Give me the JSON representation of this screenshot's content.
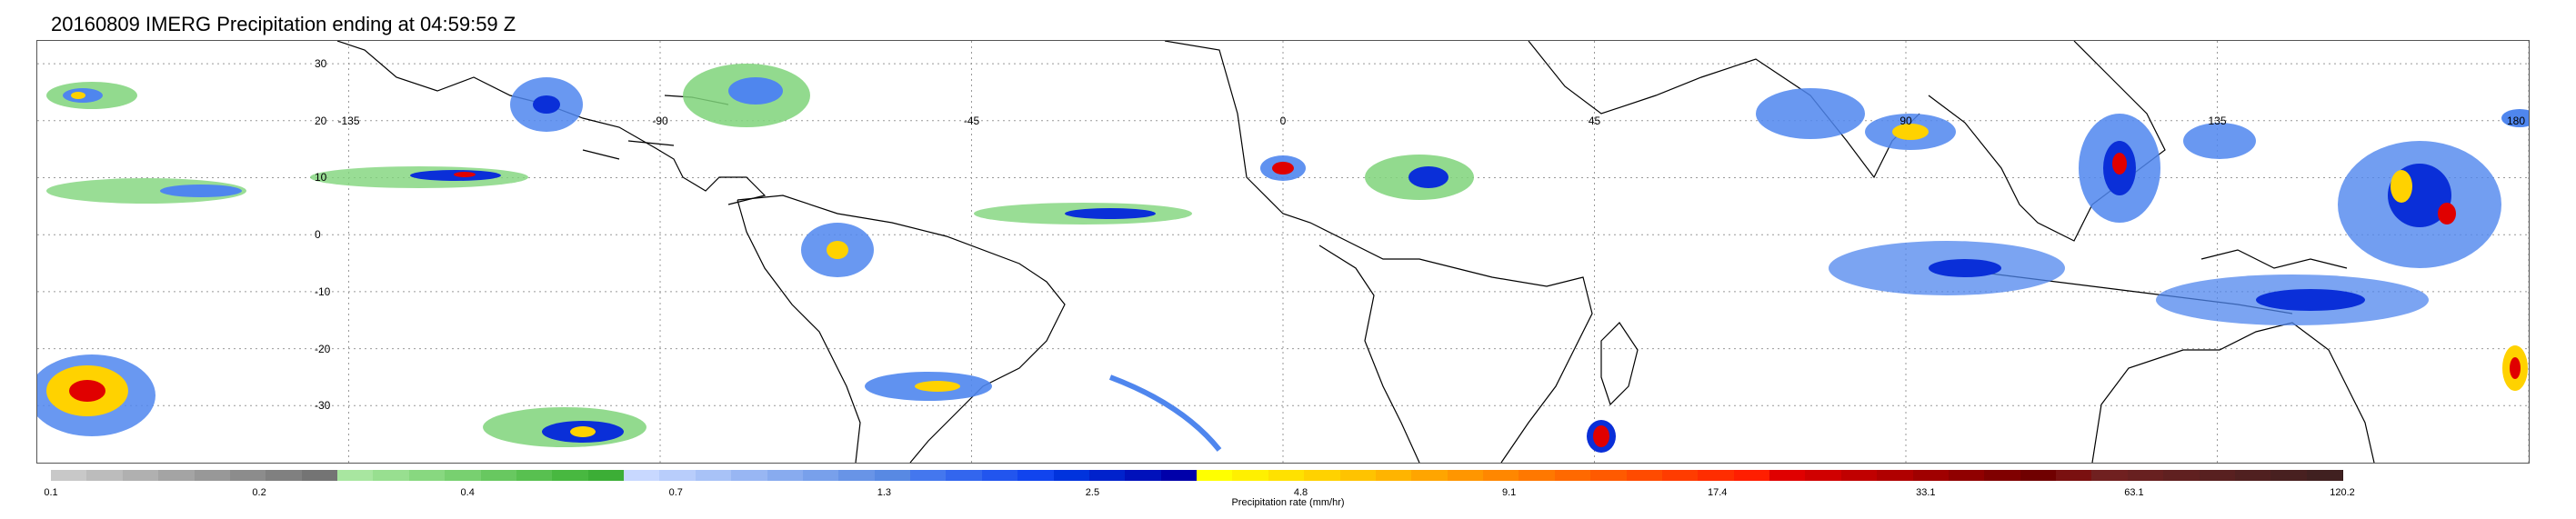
{
  "title": "20160809 IMERG Precipitation ending at 04:59:59 Z",
  "map": {
    "projection": "equirectangular",
    "lat_range": [
      -40,
      34
    ],
    "lon_range": [
      -180,
      180
    ],
    "gridlines": "dotted",
    "lat_ticks": [
      {
        "value": 30,
        "label": "30"
      },
      {
        "value": 20,
        "label": "20"
      },
      {
        "value": 10,
        "label": "10"
      },
      {
        "value": 0,
        "label": "0"
      },
      {
        "value": -10,
        "label": "-10"
      },
      {
        "value": -20,
        "label": "-20"
      },
      {
        "value": -30,
        "label": "-30"
      }
    ],
    "lon_ticks": [
      {
        "value": -135,
        "label": "-135"
      },
      {
        "value": -90,
        "label": "-90"
      },
      {
        "value": -45,
        "label": "-45"
      },
      {
        "value": 0,
        "label": "0"
      },
      {
        "value": 45,
        "label": "45"
      },
      {
        "value": 90,
        "label": "90"
      },
      {
        "value": 135,
        "label": "135"
      },
      {
        "value": 180,
        "label": "180"
      }
    ]
  },
  "colorbar": {
    "label": "Precipitation rate (mm/hr)",
    "tick_labels": [
      "0.1",
      "0.2",
      "0.4",
      "0.7",
      "1.3",
      "2.5",
      "4.8",
      "9.1",
      "17.4",
      "33.1",
      "63.1",
      "120.2"
    ],
    "colors": [
      "#c8c8c8",
      "#bcbcbc",
      "#b0b0b0",
      "#a4a4a4",
      "#989898",
      "#8c8c8c",
      "#808080",
      "#747474",
      "#a8e6a0",
      "#98df90",
      "#88d880",
      "#78d070",
      "#68c860",
      "#58c050",
      "#48b840",
      "#3cae36",
      "#c8d8ff",
      "#b8cdfb",
      "#a8c2f7",
      "#98b6f3",
      "#88abef",
      "#78a0eb",
      "#6894e7",
      "#5889e3",
      "#4477ee",
      "#3366ee",
      "#2255ee",
      "#1144ee",
      "#0033dd",
      "#0022cc",
      "#0011bb",
      "#0000aa",
      "#ffff00",
      "#fff000",
      "#ffe100",
      "#ffd200",
      "#ffc300",
      "#ffb400",
      "#ffa500",
      "#ff9600",
      "#ff8700",
      "#ff7800",
      "#ff6900",
      "#ff5a00",
      "#ff4b00",
      "#ff3c00",
      "#ff2d00",
      "#ff1e00",
      "#e00000",
      "#d00000",
      "#c00000",
      "#b00000",
      "#a00000",
      "#900000",
      "#800000",
      "#700000",
      "#7a1010",
      "#702020",
      "#682020",
      "#602020",
      "#582020",
      "#502020",
      "#482020",
      "#402020"
    ]
  },
  "precip_palette": {
    "light": "#7fd47a",
    "moderate": "#4f86ee",
    "heavy": "#0a2fd8",
    "intense": "#ffd200",
    "extreme": "#e00000"
  }
}
